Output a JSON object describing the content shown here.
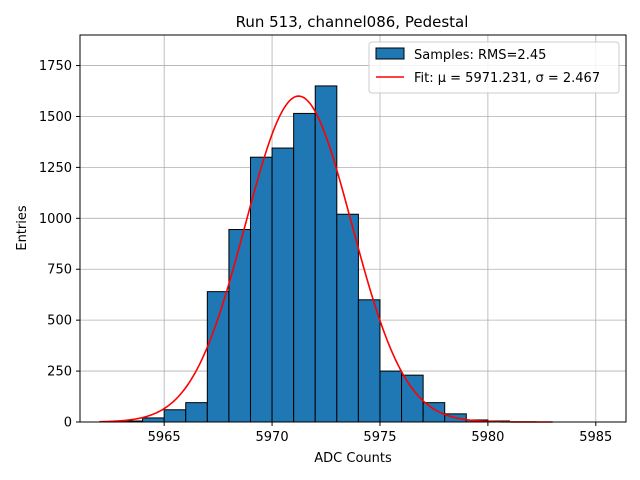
{
  "chart_data": {
    "type": "bar",
    "title": "Run 513, channel086, Pedestal",
    "xlabel": "ADC Counts",
    "ylabel": "Entries",
    "xlim": [
      5961.1,
      5986.4
    ],
    "ylim": [
      0,
      1900
    ],
    "xticks": [
      5965,
      5970,
      5975,
      5980,
      5985
    ],
    "yticks": [
      0,
      250,
      500,
      750,
      1000,
      1250,
      1500,
      1750
    ],
    "grid": true,
    "legend_position": "top-right",
    "bin_width": 1,
    "histogram": {
      "name": "Samples: RMS=2.45",
      "color": "#1f77b4",
      "bin_starts": [
        5963,
        5964,
        5965,
        5966,
        5967,
        5968,
        5969,
        5970,
        5971,
        5972,
        5973,
        5974,
        5975,
        5976,
        5977,
        5978,
        5979,
        5980
      ],
      "counts": [
        5,
        20,
        60,
        95,
        640,
        945,
        1300,
        1345,
        1515,
        1650,
        1020,
        600,
        250,
        230,
        95,
        40,
        10,
        5
      ]
    },
    "fit": {
      "name": "Fit: μ = 5971.231, σ = 2.467",
      "color": "#ff0000",
      "mu": 5971.231,
      "sigma": 2.467,
      "amplitude": 1600,
      "x_range": [
        5962,
        5983
      ]
    }
  }
}
